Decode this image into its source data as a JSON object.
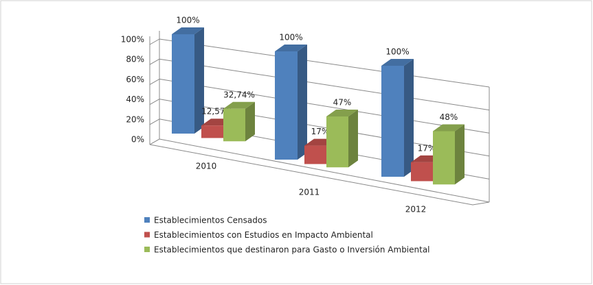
{
  "chart_data": {
    "type": "bar3d",
    "categories": [
      "2010",
      "2011",
      "2012"
    ],
    "series": [
      {
        "name": "Establecimientos Censados",
        "color": "#4f81bd",
        "values": [
          100,
          100,
          100
        ],
        "value_labels": [
          "100%",
          "100%",
          "100%"
        ]
      },
      {
        "name": "Establecimientos con Estudios en Impacto Ambiental",
        "color": "#c0504d",
        "values": [
          12.57,
          17,
          17
        ],
        "value_labels": [
          "12,57%",
          "17%",
          "17%"
        ]
      },
      {
        "name": "Establecimientos que destinaron para Gasto o Inversión Ambiental",
        "color": "#9bbb59",
        "values": [
          32.74,
          47,
          48
        ],
        "value_labels": [
          "32,74%",
          "47%",
          "48%"
        ]
      }
    ],
    "ylim": [
      0,
      100
    ],
    "yticks": [
      {
        "value": 0,
        "label": "0%"
      },
      {
        "value": 20,
        "label": "20%"
      },
      {
        "value": 40,
        "label": "40%"
      },
      {
        "value": 60,
        "label": "60%"
      },
      {
        "value": 80,
        "label": "80%"
      },
      {
        "value": 100,
        "label": "100%"
      }
    ],
    "grid": true,
    "legend": "bottom-left"
  }
}
